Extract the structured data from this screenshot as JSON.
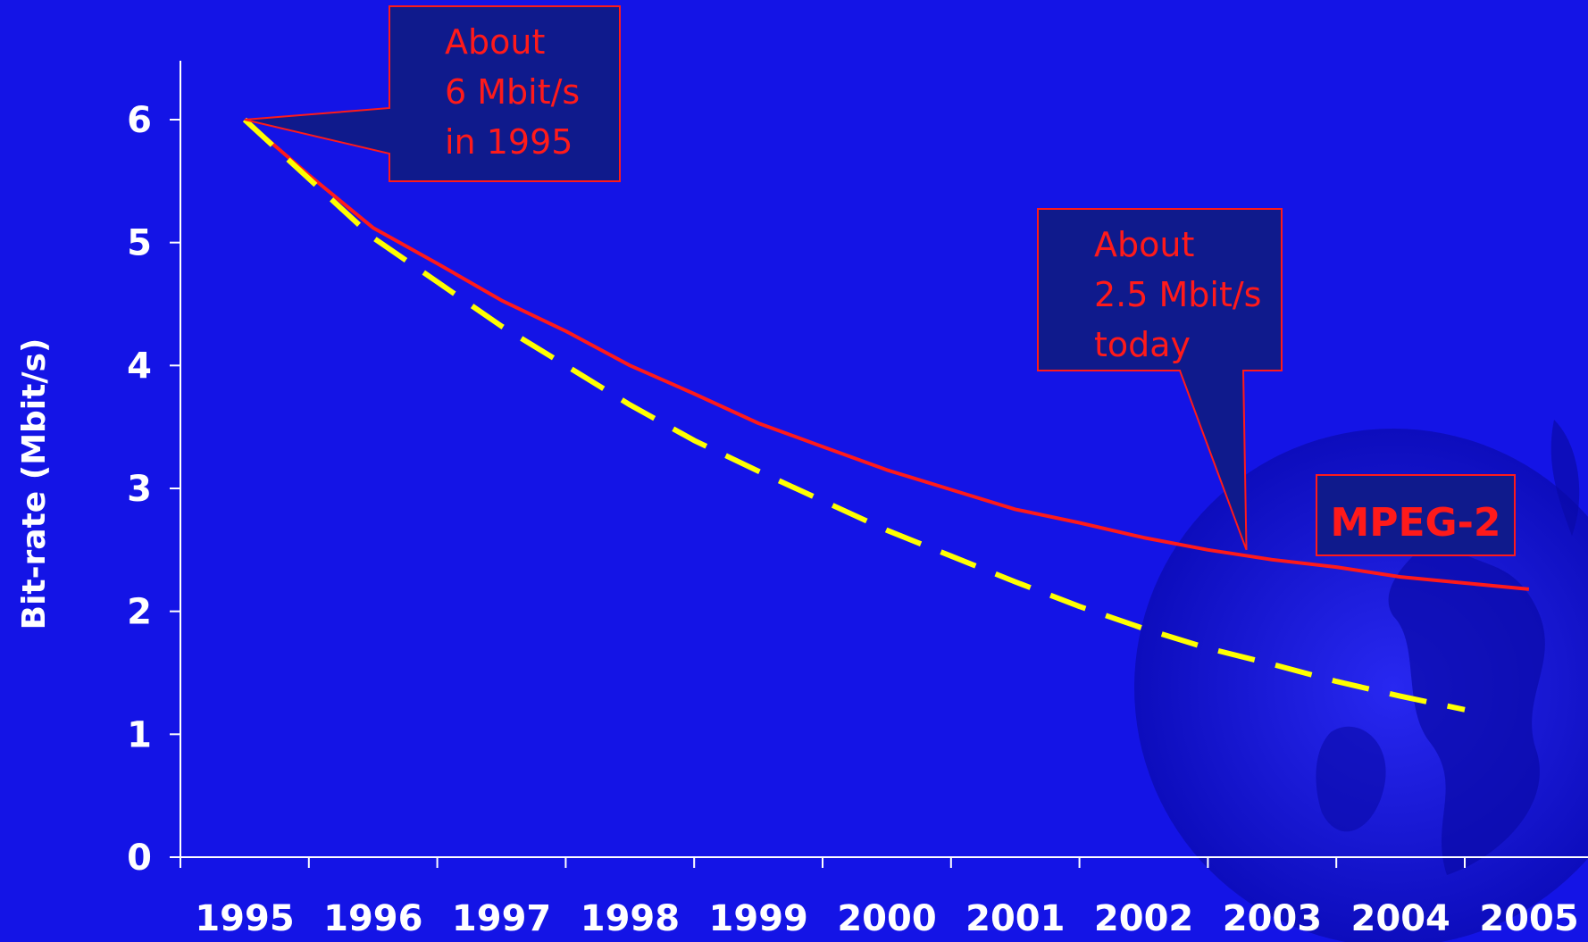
{
  "chart_data": {
    "type": "line",
    "title": "",
    "xlabel": "",
    "ylabel": "Bit-rate (Mbit/s)",
    "x": [
      1995,
      1996,
      1997,
      1998,
      1999,
      2000,
      2001,
      2002,
      2003,
      2004,
      2005
    ],
    "xlim": [
      1995,
      2005
    ],
    "ylim": [
      0,
      6
    ],
    "yticks": [
      0,
      1,
      2,
      3,
      4,
      5,
      6
    ],
    "series": [
      {
        "name": "MPEG-2",
        "style": "solid",
        "color": "#ff1a1a",
        "points": [
          [
            1995.5,
            6.0
          ],
          [
            1996.0,
            5.55
          ],
          [
            1996.5,
            5.12
          ],
          [
            1997.0,
            4.83
          ],
          [
            1997.5,
            4.53
          ],
          [
            1998.0,
            4.28
          ],
          [
            1998.5,
            4.0
          ],
          [
            1999.0,
            3.77
          ],
          [
            1999.5,
            3.53
          ],
          [
            2000.0,
            3.34
          ],
          [
            2000.5,
            3.15
          ],
          [
            2001.0,
            2.99
          ],
          [
            2001.5,
            2.83
          ],
          [
            2002.0,
            2.72
          ],
          [
            2002.5,
            2.6
          ],
          [
            2003.0,
            2.5
          ],
          [
            2003.5,
            2.42
          ],
          [
            2004.0,
            2.36
          ],
          [
            2004.5,
            2.28
          ],
          [
            2005.0,
            2.23
          ],
          [
            2005.5,
            2.18
          ]
        ]
      },
      {
        "name": "",
        "style": "dashed",
        "color": "#ffff00",
        "points": [
          [
            1995.5,
            6.0
          ],
          [
            1996.0,
            5.52
          ],
          [
            1996.5,
            5.04
          ],
          [
            1997.0,
            4.68
          ],
          [
            1997.5,
            4.32
          ],
          [
            1998.0,
            4.0
          ],
          [
            1998.5,
            3.68
          ],
          [
            1999.0,
            3.39
          ],
          [
            1999.5,
            3.14
          ],
          [
            2000.0,
            2.9
          ],
          [
            2000.5,
            2.66
          ],
          [
            2001.0,
            2.45
          ],
          [
            2001.5,
            2.24
          ],
          [
            2002.0,
            2.04
          ],
          [
            2002.5,
            1.86
          ],
          [
            2003.0,
            1.7
          ],
          [
            2003.5,
            1.57
          ],
          [
            2004.0,
            1.43
          ],
          [
            2004.5,
            1.31
          ],
          [
            2005.0,
            1.2
          ]
        ]
      }
    ],
    "annotations": [
      {
        "lines": [
          "About",
          "6 Mbit/s",
          "in 1995"
        ],
        "target": [
          1995.5,
          6.0
        ]
      },
      {
        "lines": [
          "About",
          "2.5 Mbit/s",
          "today"
        ],
        "target": [
          2003.3,
          2.5
        ]
      }
    ],
    "series_label": "MPEG-2",
    "colors": {
      "background": "#1414e6",
      "axis": "#ffffff",
      "callout_fill": "#0f1a8c",
      "callout_border": "#ff1a1a"
    }
  }
}
